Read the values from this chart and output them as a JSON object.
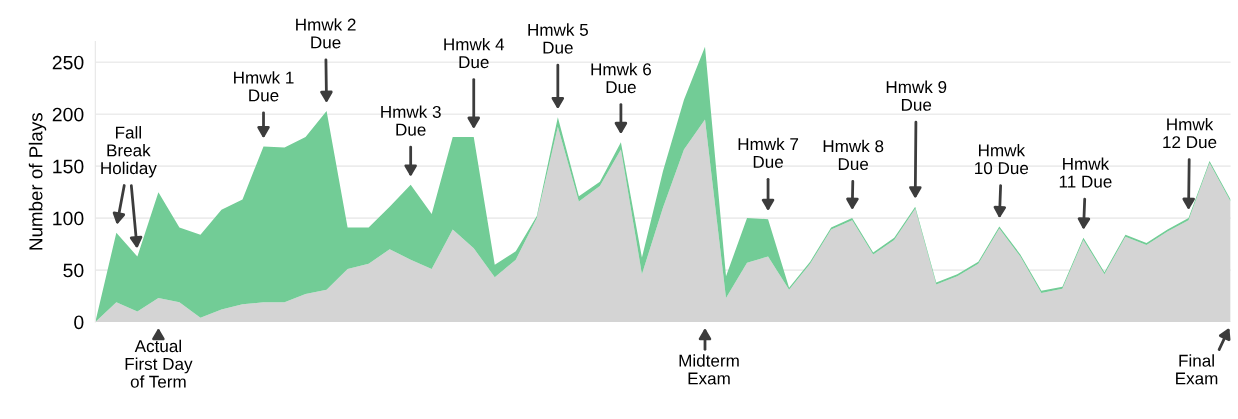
{
  "chart_data": {
    "type": "area",
    "stacked": true,
    "ylabel": "Number of Plays",
    "categories": [
      null,
      null,
      null,
      null,
      null,
      null,
      null,
      null,
      null,
      null,
      null,
      null,
      null,
      null,
      null,
      null,
      null,
      null,
      null,
      null,
      null,
      null,
      null,
      null,
      null,
      null,
      null,
      null,
      null,
      null,
      null,
      null,
      null,
      null,
      null,
      null,
      null,
      null,
      null,
      null,
      null,
      null,
      null,
      null,
      null,
      null,
      null,
      null,
      null,
      null,
      null,
      null,
      null,
      null,
      null
    ],
    "series": [
      {
        "color": "#d4d4d4",
        "values": [
          0,
          19,
          10,
          23,
          19,
          4,
          12,
          17,
          19,
          19,
          27,
          31,
          51,
          56,
          70,
          60,
          51,
          89,
          71,
          43,
          60,
          100,
          188,
          116,
          131,
          166,
          46,
          110,
          166,
          195,
          23,
          57,
          63,
          31,
          56,
          89,
          98,
          65,
          79,
          109,
          36,
          44,
          56,
          90,
          63,
          28,
          32,
          79,
          46,
          82,
          74,
          87,
          98,
          153,
          116
        ]
      },
      {
        "color": "#72cc96",
        "values": [
          0,
          67,
          53,
          102,
          72,
          80,
          96,
          101,
          150,
          149,
          151,
          172,
          40,
          35,
          41,
          72,
          53,
          89,
          107,
          12,
          8,
          2,
          9,
          5,
          4,
          7,
          16,
          35,
          48,
          70,
          21,
          43,
          36,
          2,
          2,
          2,
          2,
          2,
          2,
          2,
          2,
          2,
          2,
          2,
          2,
          2,
          2,
          2,
          2,
          2,
          2,
          2,
          2,
          2,
          2
        ]
      }
    ],
    "ylim": [
      0,
      270
    ],
    "yticks": [
      0,
      50,
      100,
      150,
      200,
      250
    ],
    "grid": "y",
    "legend": false,
    "annotations": [
      "Fall\nBreak\nHoliday",
      "Actual\nFirst Day\nof Term",
      "Hmwk 1\nDue",
      "Hmwk 2\nDue",
      "Hmwk 3\nDue",
      "Hmwk 4\nDue",
      "Hmwk 5\nDue",
      "Hmwk 6\nDue",
      "Midterm\nExam",
      "Hmwk 7\nDue",
      "Hmwk 8\nDue",
      "Hmwk 9\nDue",
      "Hmwk\n10 Due",
      "Hmwk\n11 Due",
      "Hmwk\n12 Due",
      "Final\nExam"
    ]
  }
}
